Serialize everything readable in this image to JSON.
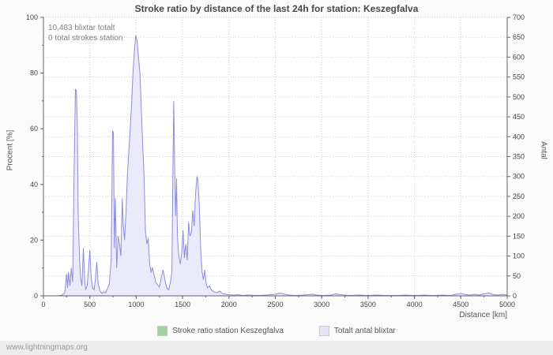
{
  "page": {
    "title": "Stroke ratio by distance of the last 24h for station: Keszegfalva",
    "footer_link": "www.lightningmaps.org"
  },
  "chart_data": {
    "type": "area",
    "title": "Stroke ratio by distance of the last 24h for station: Keszegfalva",
    "xlabel": "Distance  [km]",
    "ylabel_left": "Procent  [%]",
    "ylabel_right": "Antal",
    "xlim": [
      0,
      5000
    ],
    "ylim_left": [
      0,
      100
    ],
    "ylim_right": [
      0,
      700
    ],
    "x_ticks": [
      0,
      500,
      1000,
      1500,
      2000,
      2500,
      3000,
      3500,
      4000,
      4500,
      5000
    ],
    "y_left_ticks": [
      0,
      20,
      40,
      60,
      80,
      100
    ],
    "y_right_ticks": [
      0,
      50,
      100,
      150,
      200,
      250,
      300,
      350,
      400,
      450,
      500,
      550,
      600,
      650,
      700
    ],
    "grid": true,
    "legend_position": "bottom",
    "annotations": {
      "line1": "10,483 blixtar totalt",
      "line2": "0 total strokes station"
    },
    "legend": [
      {
        "label": "Stroke ratio station Keszegfalva",
        "color": "#9fd49f"
      },
      {
        "label": "Totalt antal blixtar",
        "color": "#e6e6fa"
      }
    ],
    "series": [
      {
        "name": "Stroke ratio station Keszegfalva",
        "axis": "left",
        "color": "#9fd49f",
        "fill": null,
        "points": [
          [
            0,
            0
          ],
          [
            5000,
            0
          ]
        ]
      },
      {
        "name": "Totalt antal blixtar",
        "axis": "right",
        "color": "#8c8cdb",
        "fill": "#eaeafb",
        "points": [
          [
            0,
            0
          ],
          [
            150,
            0
          ],
          [
            200,
            2
          ],
          [
            230,
            8
          ],
          [
            250,
            55
          ],
          [
            260,
            20
          ],
          [
            270,
            60
          ],
          [
            285,
            25
          ],
          [
            300,
            70
          ],
          [
            315,
            35
          ],
          [
            330,
            300
          ],
          [
            345,
            520
          ],
          [
            355,
            515
          ],
          [
            365,
            430
          ],
          [
            375,
            200
          ],
          [
            390,
            90
          ],
          [
            400,
            45
          ],
          [
            415,
            25
          ],
          [
            430,
            120
          ],
          [
            445,
            40
          ],
          [
            455,
            15
          ],
          [
            470,
            25
          ],
          [
            485,
            60
          ],
          [
            500,
            115
          ],
          [
            515,
            45
          ],
          [
            530,
            20
          ],
          [
            545,
            15
          ],
          [
            560,
            40
          ],
          [
            575,
            85
          ],
          [
            590,
            30
          ],
          [
            610,
            12
          ],
          [
            630,
            6
          ],
          [
            650,
            10
          ],
          [
            670,
            8
          ],
          [
            690,
            18
          ],
          [
            710,
            30
          ],
          [
            730,
            90
          ],
          [
            745,
            415
          ],
          [
            755,
            410
          ],
          [
            765,
            120
          ],
          [
            775,
            245
          ],
          [
            790,
            70
          ],
          [
            805,
            150
          ],
          [
            820,
            130
          ],
          [
            835,
            100
          ],
          [
            850,
            245
          ],
          [
            860,
            180
          ],
          [
            875,
            140
          ],
          [
            890,
            210
          ],
          [
            905,
            300
          ],
          [
            920,
            360
          ],
          [
            935,
            420
          ],
          [
            950,
            480
          ],
          [
            965,
            560
          ],
          [
            980,
            615
          ],
          [
            995,
            655
          ],
          [
            1010,
            640
          ],
          [
            1025,
            600
          ],
          [
            1040,
            560
          ],
          [
            1055,
            470
          ],
          [
            1070,
            380
          ],
          [
            1085,
            300
          ],
          [
            1100,
            160
          ],
          [
            1115,
            130
          ],
          [
            1130,
            145
          ],
          [
            1145,
            80
          ],
          [
            1160,
            60
          ],
          [
            1175,
            70
          ],
          [
            1190,
            55
          ],
          [
            1210,
            35
          ],
          [
            1230,
            28
          ],
          [
            1250,
            22
          ],
          [
            1270,
            45
          ],
          [
            1290,
            65
          ],
          [
            1310,
            40
          ],
          [
            1330,
            20
          ],
          [
            1350,
            15
          ],
          [
            1370,
            35
          ],
          [
            1385,
            60
          ],
          [
            1395,
            300
          ],
          [
            1405,
            490
          ],
          [
            1415,
            330
          ],
          [
            1425,
            200
          ],
          [
            1435,
            295
          ],
          [
            1445,
            150
          ],
          [
            1460,
            100
          ],
          [
            1475,
            80
          ],
          [
            1490,
            105
          ],
          [
            1505,
            165
          ],
          [
            1520,
            95
          ],
          [
            1535,
            130
          ],
          [
            1550,
            90
          ],
          [
            1565,
            185
          ],
          [
            1580,
            150
          ],
          [
            1595,
            160
          ],
          [
            1610,
            215
          ],
          [
            1625,
            175
          ],
          [
            1640,
            255
          ],
          [
            1655,
            300
          ],
          [
            1665,
            290
          ],
          [
            1680,
            230
          ],
          [
            1695,
            120
          ],
          [
            1710,
            60
          ],
          [
            1725,
            40
          ],
          [
            1740,
            65
          ],
          [
            1755,
            30
          ],
          [
            1770,
            20
          ],
          [
            1790,
            25
          ],
          [
            1810,
            15
          ],
          [
            1840,
            10
          ],
          [
            1870,
            8
          ],
          [
            1900,
            12
          ],
          [
            1930,
            6
          ],
          [
            1960,
            4
          ],
          [
            2000,
            3
          ],
          [
            2050,
            2
          ],
          [
            2100,
            3
          ],
          [
            2150,
            1
          ],
          [
            2200,
            2
          ],
          [
            2300,
            1
          ],
          [
            2400,
            2
          ],
          [
            2500,
            4
          ],
          [
            2550,
            7
          ],
          [
            2600,
            4
          ],
          [
            2650,
            2
          ],
          [
            2700,
            1
          ],
          [
            2800,
            2
          ],
          [
            2900,
            4
          ],
          [
            2950,
            2
          ],
          [
            3000,
            1
          ],
          [
            3100,
            2
          ],
          [
            3150,
            5
          ],
          [
            3200,
            3
          ],
          [
            3300,
            1
          ],
          [
            3400,
            2
          ],
          [
            3500,
            1
          ],
          [
            3600,
            2
          ],
          [
            3700,
            1
          ],
          [
            3800,
            1
          ],
          [
            3900,
            2
          ],
          [
            4000,
            1
          ],
          [
            4100,
            2
          ],
          [
            4200,
            1
          ],
          [
            4300,
            2
          ],
          [
            4400,
            1
          ],
          [
            4450,
            4
          ],
          [
            4500,
            6
          ],
          [
            4550,
            3
          ],
          [
            4600,
            2
          ],
          [
            4650,
            4
          ],
          [
            4700,
            2
          ],
          [
            4750,
            5
          ],
          [
            4800,
            7
          ],
          [
            4850,
            3
          ],
          [
            4900,
            2
          ],
          [
            4950,
            4
          ],
          [
            5000,
            2
          ]
        ]
      }
    ]
  }
}
